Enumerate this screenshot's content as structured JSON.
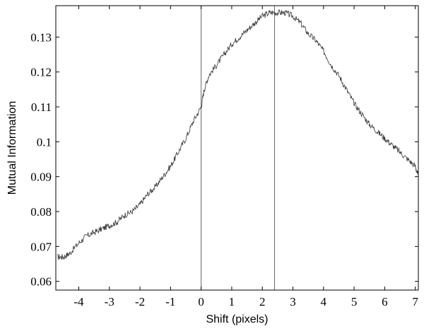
{
  "chart_data": {
    "type": "line",
    "title": "",
    "xlabel": "Shift (pixels)",
    "ylabel": "Mutual Information",
    "xlim": [
      -4.75,
      7.1
    ],
    "ylim": [
      0.0575,
      0.139
    ],
    "xticks": [
      -4,
      -3,
      -2,
      -1,
      0,
      1,
      2,
      3,
      4,
      5,
      6,
      7
    ],
    "xtick_labels": [
      "-4",
      "-3",
      "-2",
      "-1",
      "0",
      "1",
      "2",
      "3",
      "4",
      "5",
      "6",
      "7"
    ],
    "yticks": [
      0.06,
      0.07,
      0.08,
      0.09,
      0.1,
      0.11,
      0.12,
      0.13
    ],
    "ytick_labels": [
      "0.06",
      "0.07",
      "0.08",
      "0.09",
      "0.1",
      "0.11",
      "0.12",
      "0.13"
    ],
    "vertical_lines": [
      0,
      2.4
    ],
    "grid": false,
    "legend": "none",
    "colors": {
      "line": "#333333",
      "vlines": "#666666",
      "axes": "#000000"
    },
    "series": [
      {
        "x": [
          -4.7,
          -4.5,
          -4.3,
          -4.0,
          -3.75,
          -3.5,
          -3.25,
          -3.0,
          -2.75,
          -2.5,
          -2.25,
          -2.0,
          -1.75,
          -1.5,
          -1.25,
          -1.0,
          -0.75,
          -0.5,
          -0.25,
          0.0,
          0.1,
          0.25,
          0.5,
          0.75,
          1.0,
          1.25,
          1.5,
          1.75,
          2.0,
          2.25,
          2.5,
          2.75,
          3.0,
          3.25,
          3.5,
          3.75,
          4.0,
          4.25,
          4.5,
          4.75,
          5.0,
          5.25,
          5.5,
          5.75,
          6.0,
          6.25,
          6.5,
          6.75,
          7.0,
          7.1
        ],
        "y": [
          0.067,
          0.067,
          0.068,
          0.071,
          0.073,
          0.074,
          0.075,
          0.076,
          0.077,
          0.079,
          0.08,
          0.082,
          0.085,
          0.087,
          0.09,
          0.093,
          0.097,
          0.101,
          0.106,
          0.11,
          0.115,
          0.119,
          0.122,
          0.125,
          0.128,
          0.13,
          0.132,
          0.134,
          0.136,
          0.137,
          0.137,
          0.137,
          0.136,
          0.134,
          0.131,
          0.129,
          0.126,
          0.122,
          0.119,
          0.115,
          0.111,
          0.108,
          0.105,
          0.103,
          0.101,
          0.099,
          0.097,
          0.095,
          0.093,
          0.09
        ]
      }
    ]
  }
}
